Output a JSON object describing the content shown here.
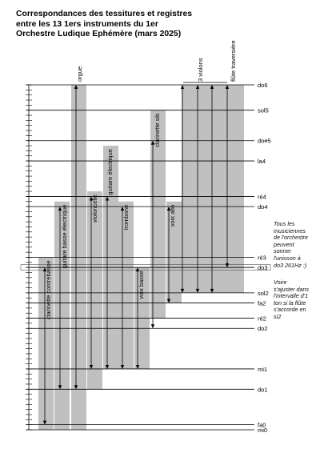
{
  "title_lines": [
    "Correspondances des tessitures et registres",
    "entre les 13 1ers instruments du 1er",
    "Orchestre Ludique Ephémère (mars 2025)"
  ],
  "notes": {
    "min": -9,
    "max": 36,
    "labeled": [
      {
        "name": "do6",
        "value": 36
      },
      {
        "name": "sol5",
        "value": 31
      },
      {
        "name": "do#5",
        "value": 25
      },
      {
        "name": "la4",
        "value": 21
      },
      {
        "name": "ré4",
        "value": 14
      },
      {
        "name": "do4",
        "value": 12
      },
      {
        "name": "ré3",
        "value": 2
      },
      {
        "name": "do3",
        "value": 0
      },
      {
        "name": "sol2",
        "value": -5
      },
      {
        "name": "fa2",
        "value": -7
      },
      {
        "name": "ré2",
        "value": -10
      },
      {
        "name": "do2",
        "value": -12
      },
      {
        "name": "mi1",
        "value": -20
      },
      {
        "name": "do1",
        "value": -24
      },
      {
        "name": "fa0",
        "value": -31
      },
      {
        "name": "mi0",
        "value": -32
      }
    ]
  },
  "instruments": [
    {
      "name": "clarinette contrebasse",
      "low": -32,
      "high": 2,
      "arrow_low": -31,
      "arrow_high": 0
    },
    {
      "name": "guitare basse électrique",
      "low": -32,
      "high": 13,
      "arrow_low": -24,
      "arrow_high": 12
    },
    {
      "name": "orgue",
      "low": -32,
      "high": 36,
      "arrow_low": -24,
      "arrow_high": 36
    },
    {
      "name": "violoncelle",
      "low": -24,
      "high": 15,
      "arrow_low": -20,
      "arrow_high": 14
    },
    {
      "name": "guitare électrique",
      "low": -20,
      "high": 24,
      "arrow_low": -20,
      "arrow_high": 14
    },
    {
      "name": "trombone",
      "low": -20,
      "high": 13,
      "arrow_low": -20,
      "arrow_high": 12
    },
    {
      "name": "voix basse",
      "low": -20,
      "high": 0,
      "arrow_low": -20,
      "arrow_high": 0
    },
    {
      "name": "clarinette sib",
      "low": -10,
      "high": 31,
      "arrow_low": -12,
      "arrow_high": 25
    },
    {
      "name": "voix alto",
      "low": -7,
      "high": 13,
      "arrow_low": -7,
      "arrow_high": 12
    },
    {
      "name": "3 violons",
      "low": -5,
      "high": 36,
      "arrow_low": -5,
      "arrow_high": 36
    },
    {
      "name": "flûte traversière",
      "low": -5,
      "high": 36,
      "arrow_low": 0,
      "arrow_high": 36
    }
  ],
  "side_notes": [
    [
      "Tous les",
      "musiciennes",
      "de l'orchestre",
      "peuvent",
      "sonner",
      "l'unisson à",
      "do3 261Hz :)"
    ],
    [
      "Voire",
      "s'ajuster dans",
      "l'intervalle d'1",
      "ton si la flûte",
      "s'accorde en",
      "si2"
    ]
  ],
  "colors": {
    "bar": "#c0c0c0",
    "line": "#000000",
    "highlight": "#555555"
  }
}
